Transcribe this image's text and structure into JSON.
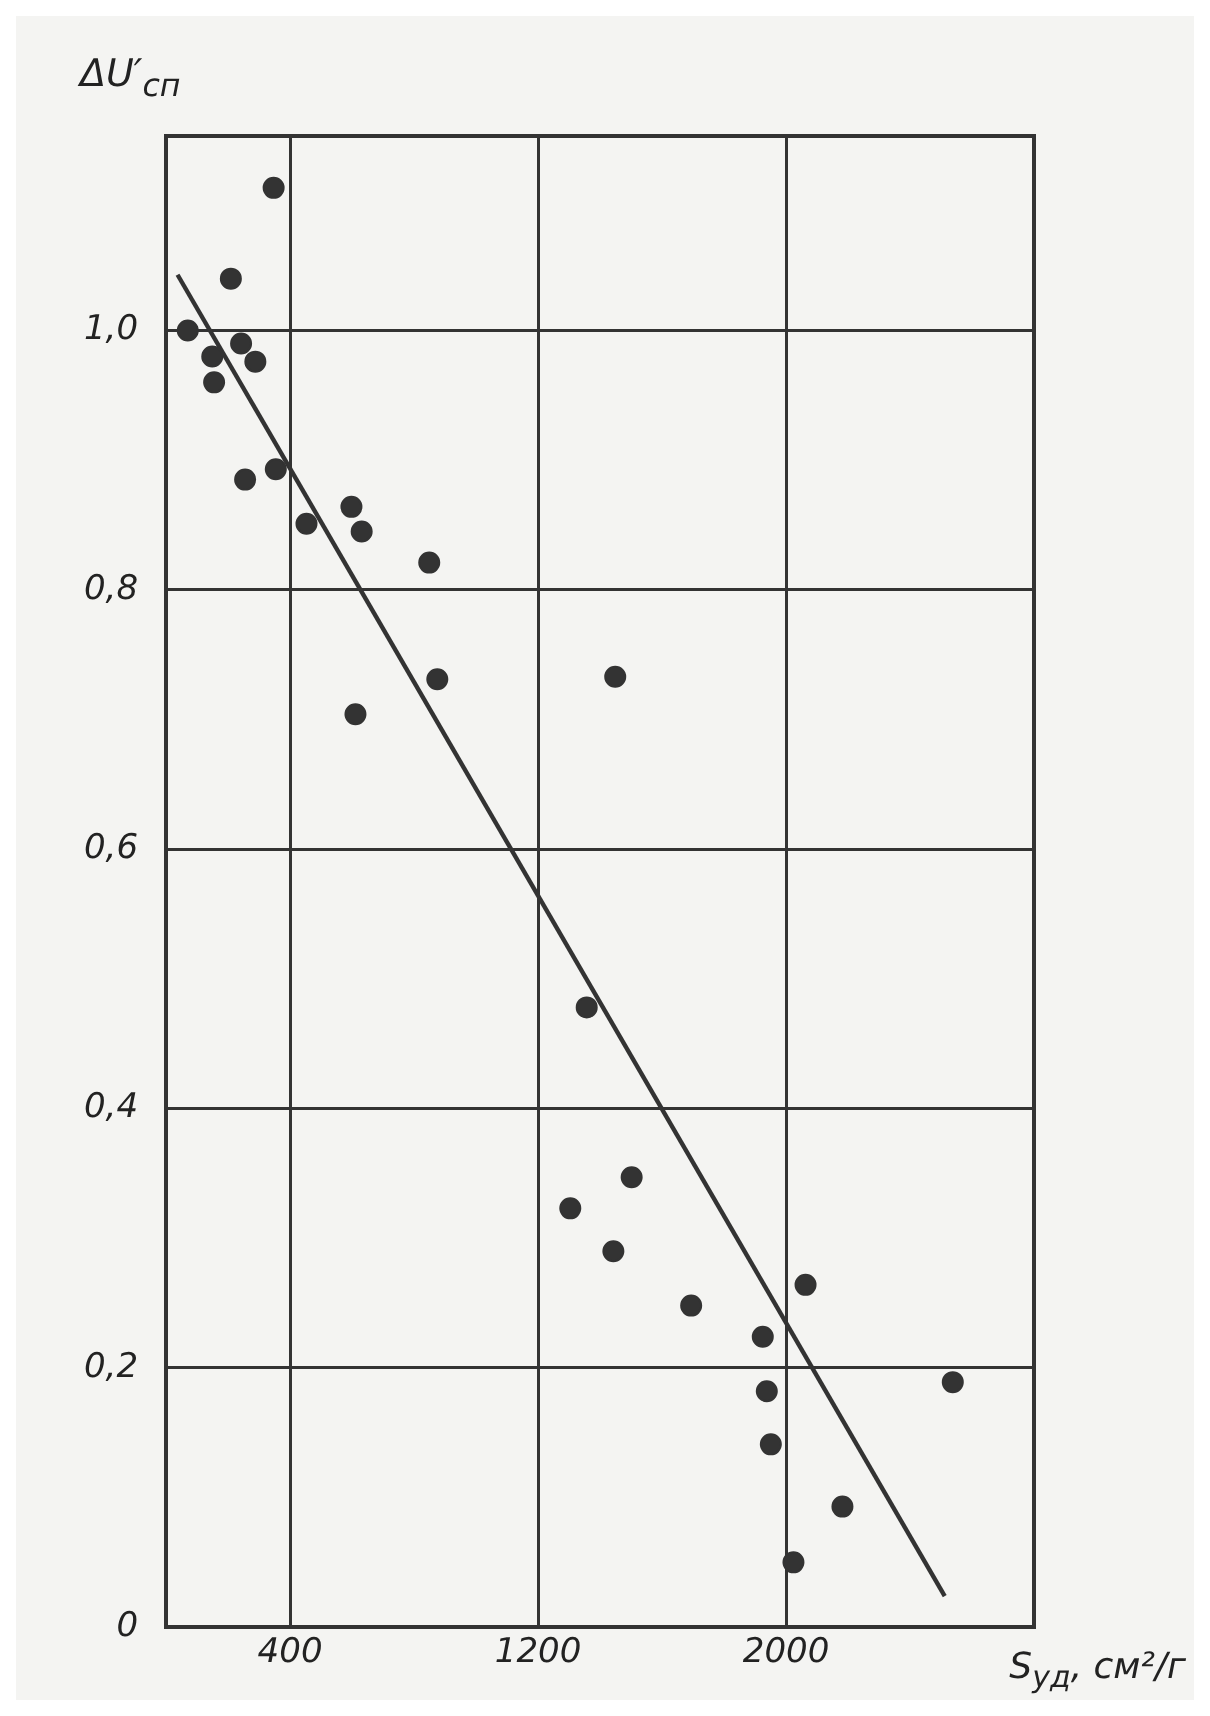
{
  "chart_data": {
    "type": "scatter",
    "xlabel": "S$_{уд}$, см²/г",
    "ylabel": "ΔU′$_{сп}$",
    "xlim": [
      0,
      2800
    ],
    "xticks": [
      400,
      1200,
      2000
    ],
    "ylim": [
      0,
      1.15
    ],
    "yticks": [
      {
        "value": 0,
        "label": "0"
      },
      {
        "value": 0.2,
        "label": "0,2"
      },
      {
        "value": 0.4,
        "label": "0,4"
      },
      {
        "value": 0.6,
        "label": "0,6"
      },
      {
        "value": 0.8,
        "label": "0,8"
      },
      {
        "value": 1.0,
        "label": "1,0"
      }
    ],
    "grid": true,
    "series": [
      {
        "color": "#333333",
        "marker": "circle",
        "x": [
          70,
          149,
          155,
          209,
          242,
          255,
          288,
          347,
          354,
          453,
          598,
          631,
          611,
          849,
          875,
          1449,
          1357,
          1304,
          1443,
          1502,
          1694,
          1925,
          1938,
          1951,
          2063,
          2024,
          2182,
          2538
        ],
        "values": [
          1.0,
          0.98,
          0.96,
          1.04,
          0.99,
          0.885,
          0.976,
          1.11,
          0.893,
          0.851,
          0.864,
          0.845,
          0.704,
          0.821,
          0.731,
          0.733,
          0.478,
          0.323,
          0.29,
          0.347,
          0.248,
          0.224,
          0.182,
          0.141,
          0.264,
          0.05,
          0.093,
          0.189
        ]
      },
      {
        "type": "line",
        "marker": "none",
        "color": "#333333",
        "x": [
          37,
          2512
        ],
        "values": [
          1.043,
          0.024
        ]
      }
    ]
  }
}
